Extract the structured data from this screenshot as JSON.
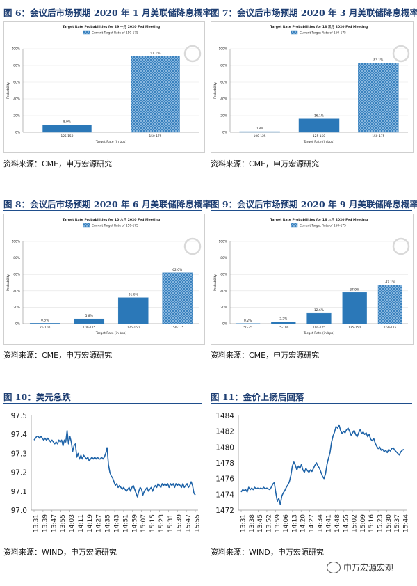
{
  "figures": [
    {
      "title": "图 6：会议后市场预期 2020 年 1 月美联储降息概率",
      "source": "资料来源：CME，申万宏源研究"
    },
    {
      "title": "图 7：会议后市场预期 2020 年 3 月美联储降息概率",
      "source": "资料来源：CME，申万宏源研究"
    },
    {
      "title": "图 8：会议后市场预期 2020 年 6 月美联储降息概率",
      "source": "资料来源：CME，申万宏源研究"
    },
    {
      "title": "图 9：会议后市场预期 2020 年 9 月美联储降息概率",
      "source": "资料来源：CME，申万宏源研究"
    },
    {
      "title": "图 10：美元急跌",
      "source": "资料来源：WIND，申万宏源研究"
    },
    {
      "title": "图 11：金价上扬后回落",
      "source": "资料来源：WIND，申万宏源研究"
    }
  ],
  "watermark": "申万宏源宏观",
  "colors": {
    "title": "#1f3f73",
    "bar": "#2b78b8",
    "bar_hatch": "#9ec5e8",
    "line": "#1e63a8"
  },
  "chart_data": [
    {
      "type": "bar",
      "title": "Target Rate Probabilities for 29 一月 2020 Fed Meeting",
      "legend": "Current Target Rate of 150-175",
      "xlabel": "Target Rate (in bps)",
      "ylabel": "Probability",
      "ylim": [
        0,
        100
      ],
      "yticks": [
        "0%",
        "20%",
        "40%",
        "60%",
        "80%",
        "100%"
      ],
      "categories": [
        "125-150",
        "150-175"
      ],
      "values": [
        8.9,
        91.1
      ],
      "value_labels": [
        "8.9%",
        "91.1%"
      ],
      "current_index": 1
    },
    {
      "type": "bar",
      "title": "Target Rate Probabilities for 18 三月 2020 Fed Meeting",
      "legend": "Current Target Rate of 150-175",
      "xlabel": "Target Rate (in bps)",
      "ylabel": "Probability",
      "ylim": [
        0,
        100
      ],
      "yticks": [
        "0%",
        "20%",
        "40%",
        "60%",
        "80%",
        "100%"
      ],
      "categories": [
        "100-125",
        "125-150",
        "150-175"
      ],
      "values": [
        0.8,
        16.1,
        83.1
      ],
      "value_labels": [
        "0.8%",
        "16.1%",
        "83.1%"
      ],
      "current_index": 2
    },
    {
      "type": "bar",
      "title": "Target Rate Probabilities for 10 六月 2020 Fed Meeting",
      "legend": "Current Target Rate of 150-175",
      "xlabel": "Target Rate (in bps)",
      "ylabel": "Probability",
      "ylim": [
        0,
        100
      ],
      "yticks": [
        "0%",
        "20%",
        "40%",
        "60%",
        "80%",
        "100%"
      ],
      "categories": [
        "75-100",
        "100-125",
        "125-150",
        "150-175"
      ],
      "values": [
        0.5,
        5.8,
        31.6,
        62.0
      ],
      "value_labels": [
        "0.5%",
        "5.8%",
        "31.6%",
        "62.0%"
      ],
      "current_index": 3
    },
    {
      "type": "bar",
      "title": "Target Rate Probabilities for 16 九月 2020 Fed Meeting",
      "legend": "Current Target Rate of 150-175",
      "xlabel": "Target Rate (in bps)",
      "ylabel": "Probability",
      "ylim": [
        0,
        100
      ],
      "yticks": [
        "0%",
        "20%",
        "40%",
        "60%",
        "80%",
        "100%"
      ],
      "categories": [
        "50-75",
        "75-100",
        "100-125",
        "125-150",
        "150-175"
      ],
      "values": [
        0.2,
        2.2,
        12.6,
        37.9,
        47.1
      ],
      "value_labels": [
        "0.2%",
        "2.2%",
        "12.6%",
        "37.9%",
        "47.1%"
      ],
      "current_index": 4
    },
    {
      "type": "line",
      "ylim": [
        97.0,
        97.5
      ],
      "yticks": [
        "97.0",
        "97.1",
        "97.2",
        "97.3",
        "97.4",
        "97.5"
      ],
      "xticks": [
        "13:31",
        "13:39",
        "13:47",
        "13:55",
        "14:03",
        "14:11",
        "14:19",
        "14:27",
        "14:35",
        "14:43",
        "14:51",
        "14:59",
        "15:07",
        "15:15",
        "15:23",
        "15:31",
        "15:39",
        "15:47",
        "15:55"
      ],
      "values": [
        97.37,
        97.38,
        97.39,
        97.39,
        97.38,
        97.39,
        97.38,
        97.37,
        97.38,
        97.37,
        97.38,
        97.37,
        97.36,
        97.37,
        97.36,
        97.35,
        97.36,
        97.35,
        97.37,
        97.36,
        97.37,
        97.34,
        97.37,
        97.36,
        97.42,
        97.35,
        97.39,
        97.36,
        97.31,
        97.34,
        97.35,
        97.28,
        97.3,
        97.27,
        97.29,
        97.27,
        97.29,
        97.28,
        97.27,
        97.28,
        97.26,
        97.27,
        97.28,
        97.27,
        97.28,
        97.27,
        97.28,
        97.27,
        97.27,
        97.28,
        97.27,
        97.28,
        97.3,
        97.33,
        97.24,
        97.2,
        97.18,
        97.17,
        97.15,
        97.13,
        97.14,
        97.12,
        97.13,
        97.12,
        97.11,
        97.12,
        97.11,
        97.1,
        97.11,
        97.12,
        97.1,
        97.12,
        97.13,
        97.11,
        97.09,
        97.07,
        97.1,
        97.12,
        97.11,
        97.08,
        97.1,
        97.11,
        97.12,
        97.1,
        97.11,
        97.12,
        97.1,
        97.12,
        97.13,
        97.12,
        97.14,
        97.13,
        97.12,
        97.14,
        97.13,
        97.14,
        97.13,
        97.14,
        97.12,
        97.14,
        97.13,
        97.14,
        97.12,
        97.14,
        97.13,
        97.14,
        97.13,
        97.12,
        97.14,
        97.12,
        97.13,
        97.14,
        97.12,
        97.13,
        97.15,
        97.13,
        97.09,
        97.08
      ]
    },
    {
      "type": "line",
      "ylim": [
        1472,
        1484
      ],
      "yticks": [
        "1472",
        "1474",
        "1476",
        "1478",
        "1480",
        "1482",
        "1484"
      ],
      "xticks": [
        "13:31",
        "13:38",
        "13:45",
        "13:52",
        "13:59",
        "14:06",
        "14:13",
        "14:20",
        "14:27",
        "14:34",
        "14:41",
        "14:48",
        "14:55",
        "15:02",
        "15:09",
        "15:16",
        "15:23",
        "15:30",
        "15:37",
        "15:44"
      ],
      "values": [
        1474.3,
        1474.6,
        1474.5,
        1474.6,
        1474.3,
        1474.9,
        1474.6,
        1474.8,
        1474.6,
        1474.9,
        1474.7,
        1474.8,
        1474.7,
        1474.8,
        1474.7,
        1474.9,
        1474.7,
        1474.8,
        1474.7,
        1474.6,
        1474.9,
        1475.3,
        1475.5,
        1474.2,
        1473.1,
        1473.5,
        1472.7,
        1473.8,
        1474.2,
        1474.5,
        1474.9,
        1475.2,
        1475.6,
        1476.4,
        1477.6,
        1478.1,
        1477.7,
        1477.1,
        1477.6,
        1477.3,
        1477.8,
        1477.1,
        1476.8,
        1477.3,
        1477.0,
        1476.8,
        1477.1,
        1476.9,
        1477.3,
        1477.7,
        1478.0,
        1477.6,
        1477.3,
        1476.8,
        1476.3,
        1476.0,
        1476.6,
        1477.8,
        1478.6,
        1479.3,
        1480.6,
        1481.4,
        1481.9,
        1482.6,
        1482.4,
        1482.8,
        1482.1,
        1481.7,
        1482.0,
        1481.8,
        1482.2,
        1482.4,
        1482.0,
        1481.5,
        1481.8,
        1482.1,
        1481.6,
        1481.3,
        1481.8,
        1482.2,
        1481.7,
        1481.9,
        1481.6,
        1481.8,
        1481.3,
        1481.6,
        1481.0,
        1480.8,
        1481.1,
        1480.5,
        1480.1,
        1479.8,
        1480.0,
        1479.6,
        1479.7,
        1479.4,
        1479.6,
        1479.3,
        1479.7,
        1479.5,
        1479.8,
        1479.9,
        1479.6,
        1479.4,
        1479.2,
        1479.0,
        1479.4,
        1479.6,
        1479.7
      ]
    }
  ]
}
